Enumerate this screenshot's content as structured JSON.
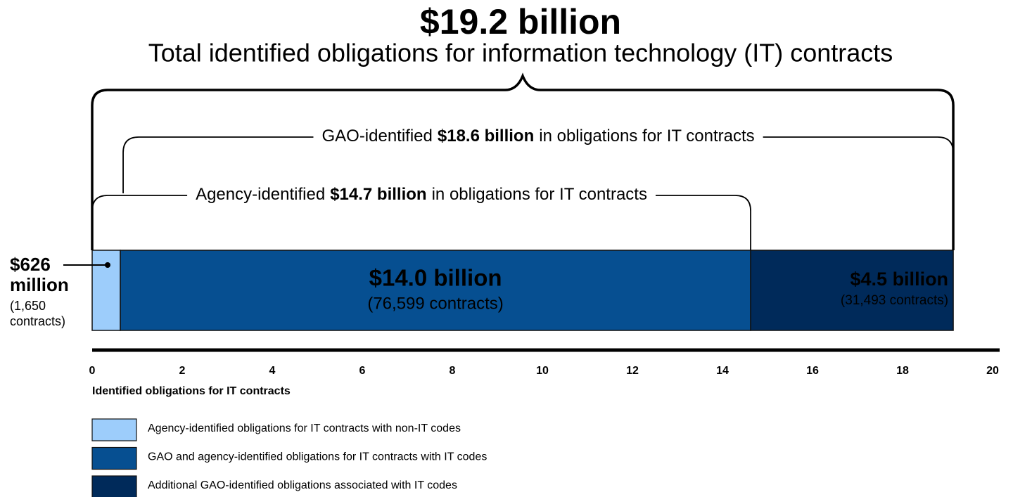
{
  "chart_data": {
    "type": "bar",
    "orientation": "horizontal",
    "stacked": true,
    "title": "$19.2 billion",
    "subtitle": "Total identified obligations for information technology (IT) contracts",
    "annotations": [
      {
        "prefix": "GAO-identified",
        "emphasis": "$18.6 billion",
        "suffix": "in obligations for IT contracts"
      },
      {
        "prefix": "Agency-identified",
        "emphasis": "$14.7 billion",
        "suffix": "in obligations for IT contracts"
      }
    ],
    "series": [
      {
        "name": "Agency-identified obligations for IT contracts with non-IT codes",
        "color": "#9dcdfb",
        "values": [
          0.626
        ],
        "value_labels": [
          "$626 million"
        ],
        "contracts_labels": [
          "(1,650 contracts)"
        ]
      },
      {
        "name": "GAO and agency-identified obligations for IT contracts with IT codes",
        "color": "#064f91",
        "values": [
          14.0
        ],
        "value_labels": [
          "$14.0 billion"
        ],
        "contracts_labels": [
          "(76,599 contracts)"
        ]
      },
      {
        "name": "Additional GAO-identified obligations associated with IT codes",
        "color": "#002a5a",
        "values": [
          4.5
        ],
        "value_labels": [
          "$4.5 billion"
        ],
        "contracts_labels": [
          "(31,493 contracts)"
        ]
      }
    ],
    "xlabel": "Identified obligations for IT contracts",
    "xlim": [
      0,
      20
    ],
    "xticks": [
      0,
      2,
      4,
      6,
      8,
      10,
      12,
      14,
      16,
      18,
      20
    ],
    "grid": false
  }
}
